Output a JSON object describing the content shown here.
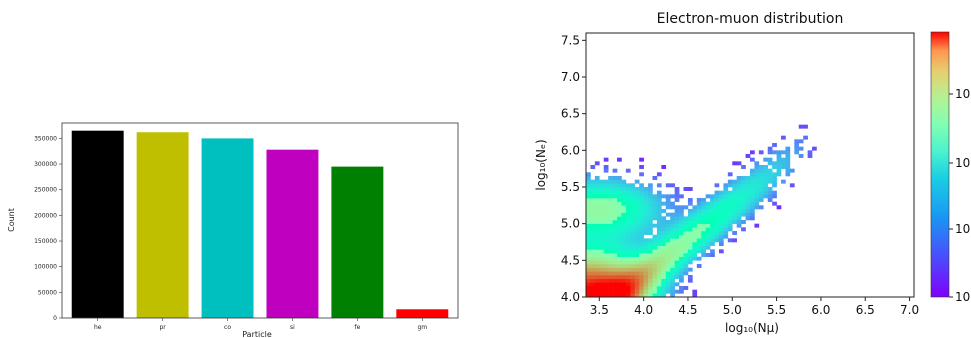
{
  "chart_data": [
    {
      "type": "bar",
      "title": "",
      "xlabel": "Particle",
      "ylabel": "Count",
      "categories": [
        "he",
        "pr",
        "co",
        "si",
        "fe",
        "gm"
      ],
      "values": [
        365000,
        362000,
        350000,
        328000,
        295000,
        17000
      ],
      "colors": [
        "#000000",
        "#bfbf00",
        "#00bfbf",
        "#bf00bf",
        "#008000",
        "#ff0000"
      ],
      "ylim": [
        0,
        380000
      ],
      "yticks": [
        0,
        50000,
        100000,
        150000,
        200000,
        250000,
        300000,
        350000
      ],
      "ytick_labels": [
        "0",
        "50000",
        "100000",
        "150000",
        "200000",
        "250000",
        "300000",
        "350000"
      ],
      "grid": false
    },
    {
      "type": "heatmap",
      "title": "Electron-muon distribution",
      "xlabel": "log₁₀(Nμ)",
      "ylabel": "log₁₀(Nₑ)",
      "xlim": [
        3.35,
        7.05
      ],
      "ylim": [
        4.0,
        7.6
      ],
      "xticks": [
        3.5,
        4.0,
        4.5,
        5.0,
        5.5,
        6.0,
        6.5,
        7.0
      ],
      "xtick_labels": [
        "3.5",
        "4.0",
        "4.5",
        "5.0",
        "5.5",
        "6.0",
        "6.5",
        "7.0"
      ],
      "yticks": [
        4.0,
        4.5,
        5.0,
        5.5,
        6.0,
        6.5,
        7.0,
        7.5
      ],
      "ytick_labels": [
        "4.0",
        "4.5",
        "5.0",
        "5.5",
        "6.0",
        "6.5",
        "7.0",
        "7.5"
      ],
      "colormap": "rainbow",
      "colorbar_tick_labels": [
        "10",
        "10",
        "10",
        "10"
      ],
      "grid": false
    }
  ]
}
